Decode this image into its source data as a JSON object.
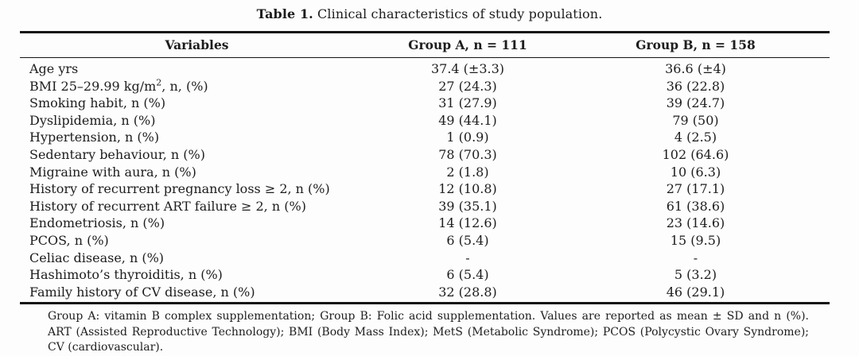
{
  "title": {
    "label": "Table 1.",
    "text": " Clinical characteristics of study population."
  },
  "table": {
    "columns": {
      "variables": "Variables",
      "group_a": "Group A, n = 111",
      "group_b": "Group B, n = 158"
    },
    "rows": [
      {
        "variable": "Age yrs",
        "group_a": "37.4 (±3.3)",
        "group_b": "36.6 (±4)"
      },
      {
        "variable": "BMI 25–29.99 kg/m², n, (%)",
        "group_a": "27 (24.3)",
        "group_b": "36 (22.8)"
      },
      {
        "variable": "Smoking habit, n (%)",
        "group_a": "31 (27.9)",
        "group_b": "39 (24.7)"
      },
      {
        "variable": "Dyslipidemia, n (%)",
        "group_a": "49 (44.1)",
        "group_b": "79 (50)"
      },
      {
        "variable": "Hypertension, n (%)",
        "group_a": "1 (0.9)",
        "group_b": "4 (2.5)"
      },
      {
        "variable": "Sedentary behaviour, n (%)",
        "group_a": "78 (70.3)",
        "group_b": "102 (64.6)"
      },
      {
        "variable": "Migraine with aura, n (%)",
        "group_a": "2 (1.8)",
        "group_b": "10 (6.3)"
      },
      {
        "variable": "History of recurrent pregnancy loss ≥ 2, n (%)",
        "group_a": "12 (10.8)",
        "group_b": "27 (17.1)"
      },
      {
        "variable": "History of recurrent ART failure ≥ 2, n (%)",
        "group_a": "39 (35.1)",
        "group_b": "61 (38.6)"
      },
      {
        "variable": "Endometriosis, n (%)",
        "group_a": "14 (12.6)",
        "group_b": "23 (14.6)"
      },
      {
        "variable": "PCOS, n (%)",
        "group_a": "6 (5.4)",
        "group_b": "15 (9.5)"
      },
      {
        "variable": "Celiac disease, n (%)",
        "group_a": "-",
        "group_b": "-"
      },
      {
        "variable": "Hashimoto’s thyroiditis, n (%)",
        "group_a": "6 (5.4)",
        "group_b": "5 (3.2)"
      },
      {
        "variable": "Family history of CV disease, n (%)",
        "group_a": "32 (28.8)",
        "group_b": "46 (29.1)"
      }
    ]
  },
  "footnote": "Group A: vitamin B complex supplementation; Group B: Folic acid supplementation. Values are reported as mean ± SD and n (%). ART (Assisted Reproductive Technology); BMI (Body Mass Index); MetS (Metabolic Syndrome); PCOS (Polycystic Ovary Syndrome); CV (cardiovascular)."
}
